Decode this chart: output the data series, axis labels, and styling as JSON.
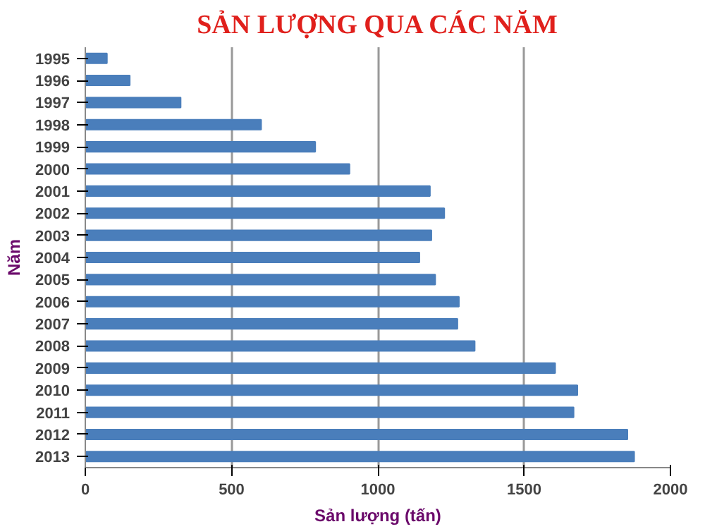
{
  "chart_data": {
    "type": "bar",
    "orientation": "horizontal",
    "title": "SẢN LƯỢNG QUA CÁC NĂM",
    "xlabel": "Sản lượng (tấn)",
    "ylabel": "Năm",
    "categories": [
      "1995",
      "1996",
      "1997",
      "1998",
      "1999",
      "2000",
      "2001",
      "2002",
      "2003",
      "2004",
      "2005",
      "2006",
      "2007",
      "2008",
      "2009",
      "2010",
      "2011",
      "2012",
      "2013"
    ],
    "values": [
      74,
      152,
      326,
      601,
      786,
      903,
      1178,
      1227,
      1183,
      1142,
      1196,
      1277,
      1272,
      1331,
      1606,
      1682,
      1669,
      1853,
      1876
    ],
    "color": "#4a7ebb",
    "xlim": [
      0,
      2000
    ],
    "xticks": [
      0,
      500,
      1000,
      1500,
      2000
    ],
    "grid": "x"
  }
}
